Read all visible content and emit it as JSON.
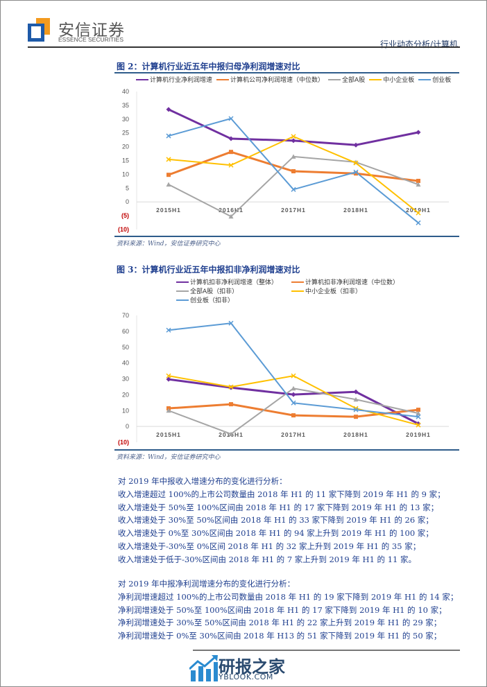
{
  "header": {
    "logo_cn": "安信证券",
    "logo_en": "ESSENCE SECURITIES",
    "section": "行业动态分析/计算机",
    "colors": {
      "logo_blue": "#1e5aa8",
      "logo_orange": "#f39a1e"
    }
  },
  "figure2": {
    "title": "图 2：计算机行业近五年中报归母净利润增速对比",
    "source": "资料来源：Wind，安信证券研究中心"
  },
  "figure3": {
    "title": "图 3：计算机行业近五年中报扣非净利润增速对比",
    "source": "资料来源：Wind，安信证券研究中心"
  },
  "chart_data": [
    {
      "type": "line",
      "title": "计算机行业近五年中报归母净利润增速对比",
      "categories": [
        "2015H1",
        "2016H1",
        "2017H1",
        "2018H1",
        "2019H1"
      ],
      "ylim": [
        -10,
        40
      ],
      "yticks": [
        40,
        35,
        30,
        25,
        20,
        15,
        10,
        5,
        0,
        -5,
        -10
      ],
      "ytick_labels": [
        "40",
        "35",
        "30",
        "25",
        "20",
        "15",
        "10",
        "5",
        "0",
        "(5)",
        "(10)"
      ],
      "grid": false,
      "legend_position": "top",
      "series": [
        {
          "name": "计算机行业净利润增速",
          "color": "#7030a0",
          "marker": "diamond",
          "width": 3,
          "values": [
            33.5,
            22.9,
            22.2,
            20.6,
            25.2
          ]
        },
        {
          "name": "计算机公司净利润增速（中位数）",
          "color": "#ed7d31",
          "marker": "square",
          "width": 3,
          "values": [
            9.8,
            18.1,
            11.1,
            10.3,
            7.6
          ]
        },
        {
          "name": "全部A股",
          "color": "#a5a5a5",
          "marker": "triangle",
          "width": 2,
          "values": [
            6.3,
            -5.3,
            16.4,
            14.4,
            6.3
          ]
        },
        {
          "name": "中小企业板",
          "color": "#ffc000",
          "marker": "x",
          "width": 2,
          "values": [
            15.4,
            13.3,
            23.7,
            14.1,
            -4.0
          ]
        },
        {
          "name": "创业板",
          "color": "#5b9bd5",
          "marker": "x",
          "width": 2,
          "values": [
            23.9,
            30.2,
            4.5,
            10.8,
            -7.6
          ]
        }
      ]
    },
    {
      "type": "line",
      "title": "计算机行业近五年中报扣非净利润增速对比",
      "categories": [
        "2015H1",
        "2016H1",
        "2017H1",
        "2018H1",
        "2019H1"
      ],
      "ylim": [
        -10,
        70
      ],
      "yticks": [
        70,
        60,
        50,
        40,
        30,
        20,
        10,
        0,
        -10
      ],
      "ytick_labels": [
        "70",
        "60",
        "50",
        "40",
        "30",
        "20",
        "10",
        "0",
        "(10)"
      ],
      "grid": false,
      "legend_position": "top",
      "series": [
        {
          "name": "计算机扣非净利润增速（整体）",
          "color": "#7030a0",
          "marker": "diamond",
          "width": 3,
          "values": [
            29.7,
            24.5,
            20.1,
            21.8,
            1.7
          ]
        },
        {
          "name": "计算机扣非净利润增速（中位数）",
          "color": "#ed7d31",
          "marker": "square",
          "width": 3,
          "values": [
            11.4,
            14.0,
            7.0,
            6.1,
            10.5
          ]
        },
        {
          "name": "全部A股（扣非）",
          "color": "#a5a5a5",
          "marker": "triangle",
          "width": 2,
          "values": [
            10.0,
            -4.8,
            24.0,
            17.0,
            8.3
          ]
        },
        {
          "name": "中小企业板（扣非）",
          "color": "#ffc000",
          "marker": "x",
          "width": 2,
          "values": [
            31.9,
            24.9,
            31.9,
            11.4,
            0.9
          ]
        },
        {
          "name": "创业板（扣非）",
          "color": "#5b9bd5",
          "marker": "x",
          "width": 2,
          "values": [
            60.7,
            65.1,
            14.8,
            10.5,
            6.1
          ]
        }
      ]
    }
  ],
  "revenue_analysis": {
    "intro": "对 2019 年中报收入增速分布的变化进行分析：",
    "lines": [
      "收入增速超过 100%的上市公司数量由 2018 年 H1 的 11 家下降到 2019 年 H1 的 9 家；",
      "收入增速处于 50%至 100%区间由 2018 年 H1 的 17 家下降到 2019 年 H1 的 13 家；",
      "收入增速处于 30%至 50%区间由 2018 年 H1 的 33 家下降到 2019 年 H1 的 26 家；",
      "收入增速处于 0%至 30%区间由 2018 年 H1 的 94 家上升到 2019 年 H1 的 100 家；",
      "收入增速处于-30%至 0%区间 2018 年 H1 的 32 家上升到 2019 年 H1 的 35 家；",
      "收入增速处于低于-30%区间由 2018 年 H1 的 7 家上升到 2019 年 H1 的 11 家。"
    ]
  },
  "profit_analysis": {
    "intro": "对 2019 年中报净利润增速分布的变化进行分析：",
    "lines": [
      "净利润增速超过 100%的上市公司数量由 2018 年 H1 的 19 家下降到 2019 年 H1 的 14 家；",
      "净利润增速处于 50%至 100%区间由 2018 年 H1 的 17 家下降到 2019 年 H1 的 10 家；",
      "净利润增速处于 30%至 50%区间由 2018 年 H1 的 22 家上升到 2019 年 H1 的 29 家；",
      "净利润增速处于 0%至 30%区间由 2018 年 H13 的 51 家下降到 2019 年 H1 的 50 家；"
    ]
  },
  "watermark": {
    "cn": "研报之家",
    "en": "YBLOOK.COM"
  }
}
